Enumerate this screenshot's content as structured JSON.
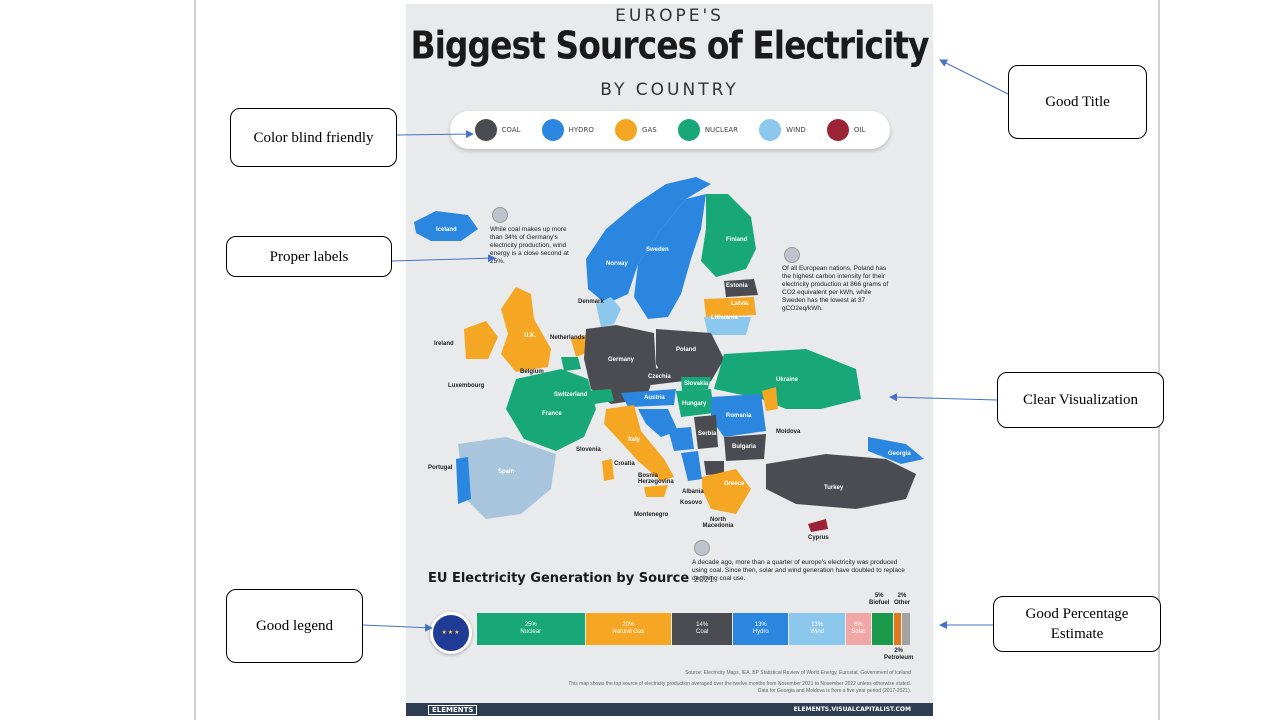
{
  "poster": {
    "top_small": "EUROPE'S",
    "title": "Biggest Sources of Electricity",
    "subtitle": "BY COUNTRY",
    "legend": [
      {
        "label": "COAL",
        "color": "#4a4c52"
      },
      {
        "label": "HYDRO",
        "color": "#2b86e0"
      },
      {
        "label": "GAS",
        "color": "#f5a623"
      },
      {
        "label": "NUCLEAR",
        "color": "#18a878"
      },
      {
        "label": "WIND",
        "color": "#8cc7ee"
      },
      {
        "label": "OIL",
        "color": "#9b2335"
      }
    ],
    "countries": {
      "iceland": "Iceland",
      "norway": "Norway",
      "sweden": "Sweden",
      "finland": "Finland",
      "estonia": "Estonia",
      "latvia": "Latvia",
      "lithuania": "Lithuania",
      "denmark": "Denmark",
      "ireland": "Ireland",
      "uk": "U.K.",
      "netherlands": "Netherlands",
      "belgium": "Belgium",
      "luxembourg": "Luxembourg",
      "germany": "Germany",
      "poland": "Poland",
      "czechia": "Czechia",
      "slovakia": "Slovakia",
      "ukraine": "Ukraine",
      "austria": "Austria",
      "hungary": "Hungary",
      "switzerland": "Switzerland",
      "france": "France",
      "romania": "Romania",
      "moldova": "Moldova",
      "slovenia": "Slovenia",
      "croatia": "Croatia",
      "italy": "Italy",
      "serbia": "Serbia",
      "bulgaria": "Bulgaria",
      "georgia": "Georgia",
      "portugal": "Portugal",
      "spain": "Spain",
      "bosnia": "Bosnia Herzegovina",
      "albania": "Albania",
      "kosovo": "Kosovo",
      "greece": "Greece",
      "turkey": "Turkey",
      "montenegro": "Montenegro",
      "north_macedonia": "North Macedonia",
      "cyprus": "Cyprus"
    },
    "annotations": {
      "germany_note": "While coal makes up more than 34% of Germany's electricity production, wind energy is a close second at 25%.",
      "poland_note": "Of all European nations, Poland has the highest carbon intensity for their electricity production at 866 grams of CO2 equivalent per kWh, while Sweden has the lowest at 37 gCO2eq/kWh.",
      "decade_note": "A decade ago, more than a quarter of europe's electricity was produced using coal. Since then, solar and wind generation have doubled to replace declining coal use."
    },
    "eu_title": "EU Electricity Generation by Source",
    "eu_year": "2021",
    "bar": [
      {
        "pct": "25%",
        "label": "Nuclear",
        "value": 25,
        "color": "#18a878"
      },
      {
        "pct": "20%",
        "label": "Natural Gas",
        "value": 20,
        "color": "#f5a623"
      },
      {
        "pct": "14%",
        "label": "Coal",
        "value": 14,
        "color": "#4a4c52"
      },
      {
        "pct": "13%",
        "label": "Hydro",
        "value": 13,
        "color": "#2b86e0"
      },
      {
        "pct": "13%",
        "label": "Wind",
        "value": 13,
        "color": "#8cc7ee"
      },
      {
        "pct": "6%",
        "label": "Solar",
        "value": 6,
        "color": "#f2a7a7"
      },
      {
        "pct": "",
        "label": "",
        "value": 5,
        "color": "#1a9a4a"
      },
      {
        "pct": "",
        "label": "",
        "value": 2,
        "color": "#e07a1f"
      },
      {
        "pct": "",
        "label": "",
        "value": 2,
        "color": "#a3a3a3"
      }
    ],
    "bar_ext": {
      "biofuel_pct": "5%",
      "biofuel": "Biofuel",
      "other_pct": "2%",
      "other": "Other",
      "petroleum_pct": "2%",
      "petroleum": "Petroleum"
    },
    "source": "Source: Electricity Maps, IEA, BP Statistical Review of World Energy, Eurostat, Government of Iceland",
    "note1": "This map shows the top source of electricity production averaged over the twelve months from November 2021 to November 2022 unless otherwise stated.",
    "note2": "Data for Georgia and Moldova is from a five year period (2017-2021).",
    "footer_left": "ELEMENTS",
    "footer_right": "ELEMENTS.VISUALCAPITALIST.COM"
  },
  "callouts": {
    "good_title": "Good Title",
    "color_blind": "Color blind  friendly",
    "proper_labels": "Proper labels",
    "clear_vis": "Clear Visualization",
    "good_legend": "Good legend",
    "good_pct": "Good Percentage Estimate"
  }
}
